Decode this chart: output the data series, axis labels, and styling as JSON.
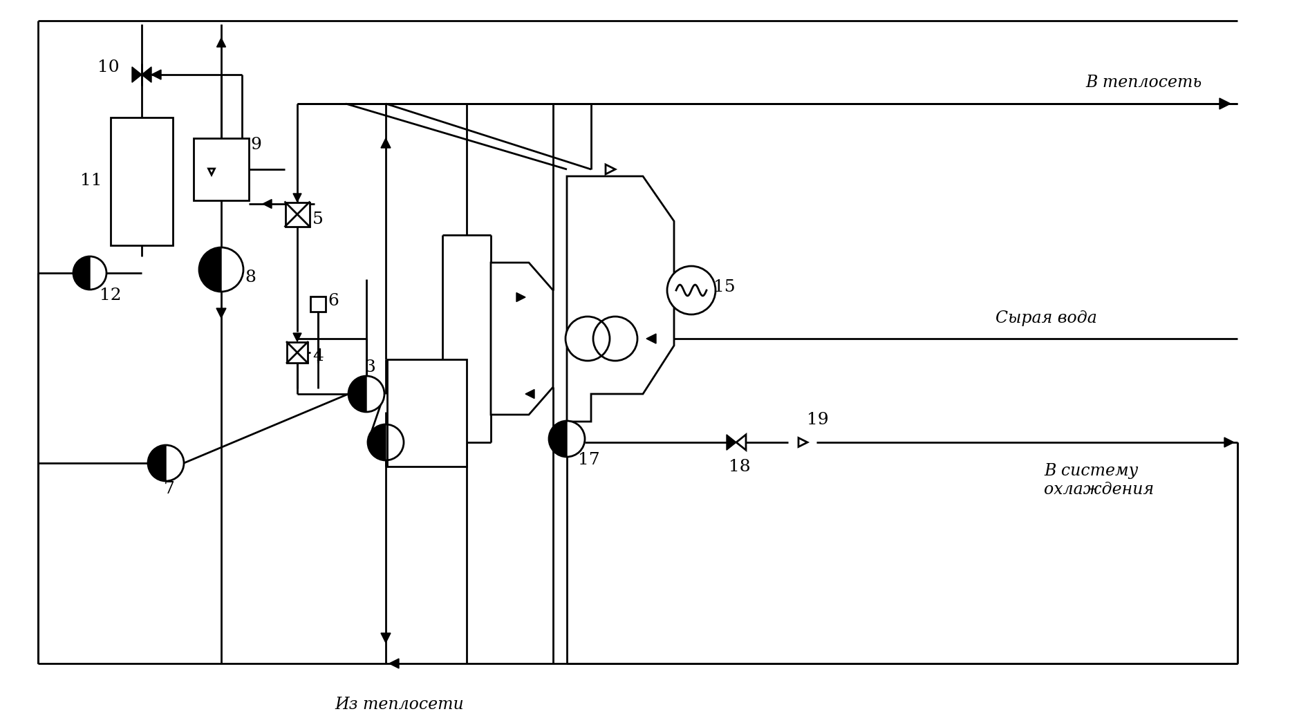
{
  "bg_color": "#ffffff",
  "lc": "#000000",
  "lw": 2.0,
  "fs_label": 17,
  "fs_num": 18,
  "labels": {
    "v_teplyset": "В теплосеть",
    "syraya_voda": "Сырая вода",
    "iz_teploseti": "Из теплосети",
    "v_sistemu": "В систему\nохлаждения"
  }
}
